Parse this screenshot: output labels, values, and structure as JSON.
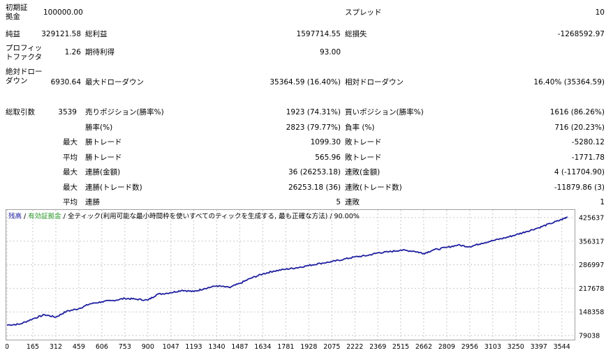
{
  "summary": {
    "initial_deposit_label": "初期証拠金",
    "initial_deposit_value": "100000.00",
    "spread_label": "スプレッド",
    "spread_value": "10",
    "net_profit_label": "純益",
    "net_profit_value": "329121.58",
    "gross_profit_label": "総利益",
    "gross_profit_value": "1597714.55",
    "gross_loss_label": "総損失",
    "gross_loss_value": "-1268592.97",
    "profit_factor_label": "プロフィットファクタ",
    "profit_factor_value": "1.26",
    "expected_payoff_label": "期待利得",
    "expected_payoff_value": "93.00",
    "abs_dd_label": "絶対ドローダウン",
    "abs_dd_value": "6930.64",
    "max_dd_label": "最大ドローダウン",
    "max_dd_value": "35364.59 (16.40%)",
    "rel_dd_label": "相対ドローダウン",
    "rel_dd_value": "16.40% (35364.59)",
    "total_trades_label": "総取引数",
    "total_trades_value": "3539",
    "short_label": "売りポジション(勝率%)",
    "short_value": "1923 (74.31%)",
    "long_label": "買いポジション(勝率%)",
    "long_value": "1616 (86.26%)",
    "win_rate_label": "勝率(%)",
    "win_rate_value": "2823 (79.77%)",
    "loss_rate_label": "負率 (%)",
    "loss_rate_value": "716 (20.23%)",
    "max_label": "最大",
    "avg_label": "平均",
    "largest_win_label": "勝トレード",
    "largest_win_value": "1099.30",
    "largest_loss_label": "敗トレード",
    "largest_loss_value": "-5280.12",
    "avg_win_label": "勝トレード",
    "avg_win_value": "565.96",
    "avg_loss_label": "敗トレード",
    "avg_loss_value": "-1771.78",
    "max_consec_wins_label": "連勝(金額)",
    "max_consec_wins_value": "36 (26253.18)",
    "max_consec_losses_label": "連敗(金額)",
    "max_consec_losses_value": "4 (-11704.90)",
    "max_consec_profit_label": "連勝(トレード数)",
    "max_consec_profit_value": "26253.18 (36)",
    "max_consec_loss_label": "連敗(トレード数)",
    "max_consec_loss_value": "-11879.86 (3)",
    "avg_consec_wins_label": "連勝",
    "avg_consec_wins_value": "5",
    "avg_consec_losses_label": "連敗",
    "avg_consec_losses_value": "1"
  },
  "chart_header": {
    "balance": "残高",
    "sep1": " / ",
    "equity": "有効証拠金",
    "sep2": " / ",
    "model": "全ティック(利用可能な最小時間枠を使いすべてのティックを生成する, 最も正確な方法)",
    "quality": " / 90.00%"
  },
  "colors": {
    "balance": "#1f1fa0",
    "equity": "#2a9a2a",
    "model": "#000000",
    "grid": "#c8c8c8"
  },
  "chart_data": {
    "type": "line",
    "series": [
      {
        "name": "残高",
        "x": [
          0,
          80,
          165,
          240,
          312,
          380,
          459,
          530,
          606,
          680,
          753,
          820,
          900,
          960,
          1047,
          1120,
          1193,
          1260,
          1340,
          1420,
          1487,
          1560,
          1634,
          1700,
          1781,
          1850,
          1928,
          2000,
          2075,
          2150,
          2222,
          2300,
          2369,
          2440,
          2515,
          2600,
          2662,
          2720,
          2809,
          2880,
          2956,
          3030,
          3103,
          3180,
          3250,
          3320,
          3397,
          3470,
          3544,
          3580
        ],
        "values": [
          110000,
          112000,
          128000,
          140000,
          133000,
          150000,
          158000,
          172000,
          178000,
          182000,
          188000,
          186000,
          183000,
          200000,
          205000,
          212000,
          208000,
          217000,
          225000,
          220000,
          232000,
          248000,
          260000,
          268000,
          274000,
          278000,
          285000,
          291000,
          296000,
          303000,
          310000,
          314000,
          322000,
          325000,
          330000,
          327000,
          320000,
          330000,
          338000,
          345000,
          340000,
          350000,
          358000,
          366000,
          375000,
          385000,
          396000,
          408000,
          420000,
          428000
        ]
      }
    ],
    "xticks": [
      "0",
      "165",
      "312",
      "459",
      "606",
      "753",
      "900",
      "1047",
      "1193",
      "1340",
      "1487",
      "1634",
      "1781",
      "1928",
      "2075",
      "2222",
      "2369",
      "2515",
      "2662",
      "2809",
      "2956",
      "3103",
      "3250",
      "3397",
      "3544"
    ],
    "yticks": [
      "425637",
      "356317",
      "286997",
      "217678",
      "148358",
      "79038"
    ],
    "xlim": [
      0,
      3590
    ],
    "ylim": [
      79038,
      425637
    ],
    "grid": true
  }
}
